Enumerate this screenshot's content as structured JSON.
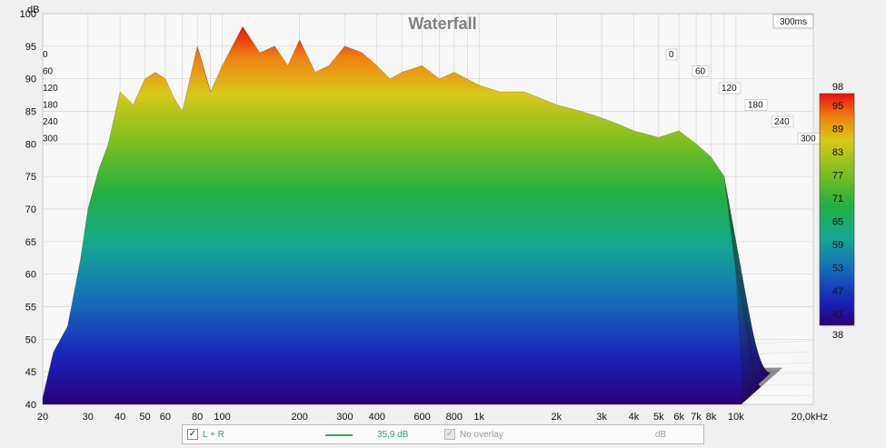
{
  "chart_data": {
    "type": "area",
    "title": "Waterfall",
    "time_badge": "300ms",
    "y_unit": "dB",
    "x_unit_suffix": "kHz",
    "y_ticks": [
      "100",
      "95",
      "90",
      "85",
      "80",
      "75",
      "70",
      "65",
      "60",
      "55",
      "50",
      "45",
      "40"
    ],
    "y_range": [
      40,
      100
    ],
    "x_ticks": [
      "20",
      "30",
      "40",
      "50",
      "60",
      "80",
      "100",
      "200",
      "300",
      "400",
      "600",
      "800",
      "1k",
      "2k",
      "3k",
      "4k",
      "5k",
      "6k",
      "7k",
      "8k",
      "10k",
      "20,0kHz"
    ],
    "x_range_hz": [
      20,
      20000
    ],
    "time_ticks_ms": [
      "0",
      "60",
      "120",
      "180",
      "240",
      "300"
    ],
    "time_ticks_left": [
      "0",
      "60",
      "120",
      "180",
      "240",
      "300"
    ],
    "time_range_ms": [
      0,
      300
    ],
    "colorbar": {
      "min": 38,
      "max": 98,
      "ticks": [
        "98",
        "95",
        "89",
        "83",
        "77",
        "71",
        "65",
        "59",
        "53",
        "47",
        "41",
        "38"
      ]
    },
    "front_slice_db": [
      [
        20,
        41
      ],
      [
        22,
        48
      ],
      [
        25,
        52
      ],
      [
        28,
        62
      ],
      [
        30,
        70
      ],
      [
        33,
        76
      ],
      [
        36,
        80
      ],
      [
        40,
        88
      ],
      [
        45,
        86
      ],
      [
        50,
        90
      ],
      [
        55,
        91
      ],
      [
        60,
        90
      ],
      [
        65,
        87
      ],
      [
        70,
        85
      ],
      [
        80,
        95
      ],
      [
        90,
        88
      ],
      [
        100,
        92
      ],
      [
        120,
        98
      ],
      [
        140,
        94
      ],
      [
        160,
        95
      ],
      [
        180,
        92
      ],
      [
        200,
        96
      ],
      [
        230,
        91
      ],
      [
        260,
        92
      ],
      [
        300,
        95
      ],
      [
        350,
        94
      ],
      [
        400,
        92
      ],
      [
        450,
        90
      ],
      [
        500,
        91
      ],
      [
        600,
        92
      ],
      [
        700,
        90
      ],
      [
        800,
        91
      ],
      [
        1000,
        89
      ],
      [
        1200,
        88
      ],
      [
        1500,
        88
      ],
      [
        2000,
        86
      ],
      [
        2500,
        85
      ],
      [
        3000,
        84
      ],
      [
        3500,
        83
      ],
      [
        4000,
        82
      ],
      [
        5000,
        81
      ],
      [
        6000,
        82
      ],
      [
        7000,
        80
      ],
      [
        8000,
        78
      ],
      [
        9000,
        75
      ],
      [
        10000,
        60
      ],
      [
        10500,
        45
      ]
    ],
    "grid": true,
    "legend_position": "bottom"
  },
  "legend": {
    "lr_label": "L + R",
    "lr_checked": "✓",
    "lr_level": "35,9 dB",
    "overlay_label": "No overlay",
    "overlay_checked": "✓",
    "overlay_unit": "dB",
    "line_color": "#2ea86b"
  }
}
